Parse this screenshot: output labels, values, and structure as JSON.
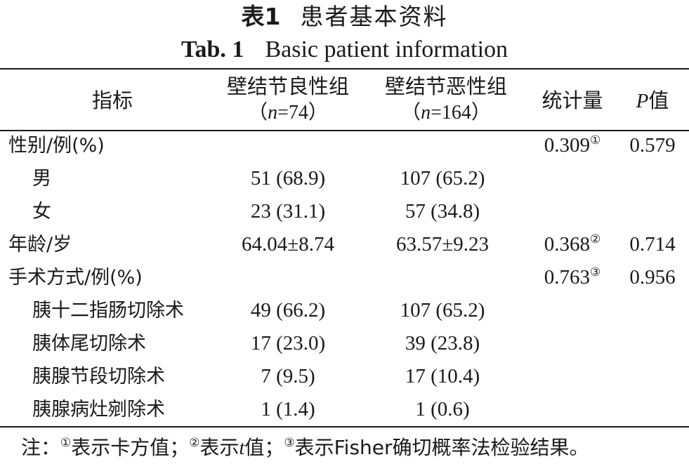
{
  "title": {
    "cn_no": "表1",
    "cn_text": "患者基本资料",
    "en_no": "Tab. 1",
    "en_text": "Basic patient information"
  },
  "header": {
    "indicator": "指标",
    "group1": "壁结节良性组",
    "group1_n_prefix": "（",
    "group1_n_var": "n",
    "group1_n_val": "=74）",
    "group2": "壁结节恶性组",
    "group2_n_prefix": "（",
    "group2_n_var": "n",
    "group2_n_val": "=164）",
    "statistic": "统计量",
    "p_var": "P",
    "p_suffix": "值"
  },
  "rows": [
    {
      "label": "性别/例(%)",
      "g1": "",
      "g2": "",
      "stat": "0.309",
      "mark": "①",
      "p": "0.579"
    },
    {
      "label": "男",
      "g1": "51 (68.9)",
      "g2": "107 (65.2)",
      "stat": "",
      "mark": "",
      "p": ""
    },
    {
      "label": "女",
      "g1": "23 (31.1)",
      "g2": "57 (34.8)",
      "stat": "",
      "mark": "",
      "p": ""
    },
    {
      "label": "年龄/岁",
      "g1": "64.04±8.74",
      "g2": "63.57±9.23",
      "stat": "0.368",
      "mark": "②",
      "p": "0.714"
    },
    {
      "label": "手术方式/例(%)",
      "g1": "",
      "g2": "",
      "stat": "0.763",
      "mark": "③",
      "p": "0.956"
    },
    {
      "label": "胰十二指肠切除术",
      "g1": "49 (66.2)",
      "g2": "107 (65.2)",
      "stat": "",
      "mark": "",
      "p": ""
    },
    {
      "label": "胰体尾切除术",
      "g1": "17 (23.0)",
      "g2": "39 (23.8)",
      "stat": "",
      "mark": "",
      "p": ""
    },
    {
      "label": "胰腺节段切除术",
      "g1": "7 (9.5)",
      "g2": "17 (10.4)",
      "stat": "",
      "mark": "",
      "p": ""
    },
    {
      "label": "胰腺病灶剜除术",
      "g1": "1 (1.4)",
      "g2": "1 (0.6)",
      "stat": "",
      "mark": "",
      "p": ""
    }
  ],
  "note": {
    "prefix": "注：",
    "m1": "①",
    "t1": "表示卡方值；",
    "m2": "②",
    "t2a": "表示",
    "t2var": "t",
    "t2b": "值；",
    "m3": "③",
    "t3": "表示Fisher确切概率法检验结果。"
  }
}
